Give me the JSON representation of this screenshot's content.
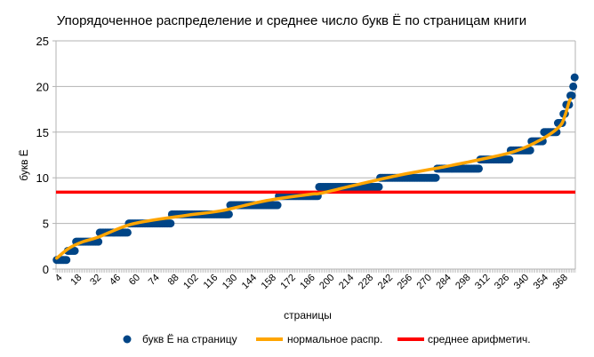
{
  "chart_data": {
    "type": "scatter",
    "title": "Упорядоченное распределение и среднее число букв Ё по страницам книги",
    "xlabel": "страницы",
    "ylabel": "букв Ё",
    "ylim": [
      0,
      25
    ],
    "yticks": [
      0,
      5,
      10,
      15,
      20,
      25
    ],
    "xlim_pages": [
      1,
      374
    ],
    "xtick_labels": [
      "4",
      "18",
      "32",
      "46",
      "60",
      "74",
      "88",
      "102",
      "116",
      "130",
      "144",
      "158",
      "172",
      "186",
      "200",
      "214",
      "228",
      "242",
      "256",
      "270",
      "284",
      "298",
      "312",
      "326",
      "340",
      "354",
      "368"
    ],
    "grid": true,
    "legend_position": "bottom",
    "series": [
      {
        "name": "букв Ё на страницу",
        "kind": "scatter",
        "color": "#004586",
        "runs": [
          {
            "value": 1,
            "count": 8
          },
          {
            "value": 2,
            "count": 6
          },
          {
            "value": 3,
            "count": 17
          },
          {
            "value": 4,
            "count": 21
          },
          {
            "value": 5,
            "count": 31
          },
          {
            "value": 6,
            "count": 42
          },
          {
            "value": 7,
            "count": 35
          },
          {
            "value": 8,
            "count": 29
          },
          {
            "value": 9,
            "count": 44
          },
          {
            "value": 10,
            "count": 41
          },
          {
            "value": 11,
            "count": 31
          },
          {
            "value": 12,
            "count": 22
          },
          {
            "value": 13,
            "count": 15
          },
          {
            "value": 14,
            "count": 9
          },
          {
            "value": 15,
            "count": 10
          },
          {
            "value": 16,
            "count": 4
          },
          {
            "value": 17,
            "count": 2
          },
          {
            "value": 18,
            "count": 3
          },
          {
            "value": 19,
            "count": 2
          },
          {
            "value": 20,
            "count": 1
          },
          {
            "value": 21,
            "count": 1
          }
        ]
      },
      {
        "name": "нормальное распр.",
        "kind": "line",
        "color": "#ffa500",
        "points": [
          [
            1,
            1.2
          ],
          [
            10,
            2.3
          ],
          [
            20,
            3.0
          ],
          [
            31,
            3.5
          ],
          [
            56,
            4.96
          ],
          [
            95,
            5.9
          ],
          [
            120,
            6.4
          ],
          [
            152,
            7.5
          ],
          [
            184,
            8.2
          ],
          [
            191,
            8.3
          ],
          [
            216,
            9.2
          ],
          [
            248,
            10.3
          ],
          [
            280,
            11.2
          ],
          [
            306,
            12.0
          ],
          [
            331,
            12.9
          ],
          [
            350,
            14.2
          ],
          [
            363,
            15.6
          ],
          [
            367,
            16.8
          ],
          [
            370,
            18.3
          ],
          [
            371,
            18.6
          ]
        ]
      },
      {
        "name": "среднее арифметич.",
        "kind": "hline",
        "color": "#ff0000",
        "value": 8.43
      }
    ]
  }
}
